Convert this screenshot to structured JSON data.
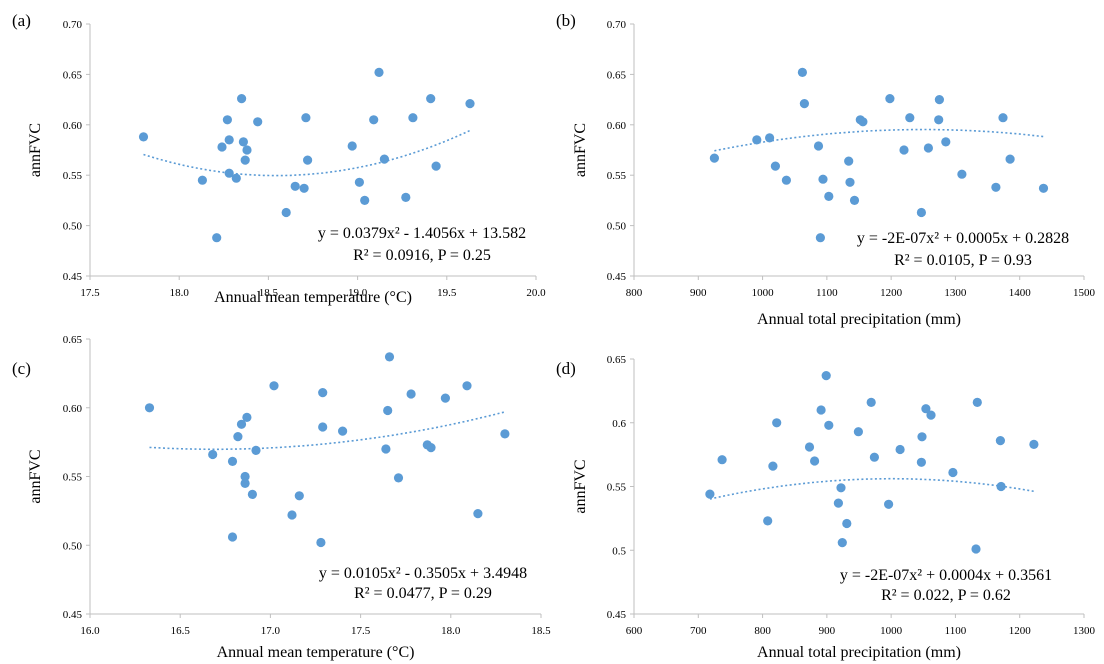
{
  "figure": {
    "colors": {
      "point": "#5b9bd5",
      "trend": "#5b9bd5",
      "axis": "#bfbfbf",
      "tick_text": "#595959"
    }
  },
  "chart_data": [
    {
      "panel": "(a)",
      "type": "scatter",
      "xlabel": "Annual mean temperature (°C)",
      "ylabel": "annFVC",
      "xlim": [
        17.5,
        20.0
      ],
      "ylim": [
        0.45,
        0.7
      ],
      "x_ticks": [
        "17.5",
        "18.0",
        "18.5",
        "19.0",
        "19.5",
        "20.0"
      ],
      "y_ticks": [
        "0.45",
        "0.50",
        "0.55",
        "0.60",
        "0.65",
        "0.70"
      ],
      "trendline": {
        "type": "poly2",
        "a": 0.0379,
        "b": -1.4056,
        "c": 13.582,
        "x_range": [
          17.8,
          19.63
        ]
      },
      "equation": "y = 0.0379x² - 1.4056x + 13.582",
      "stats": "R² = 0.0916, P = 0.25",
      "points": [
        [
          17.8,
          0.588
        ],
        [
          18.13,
          0.545
        ],
        [
          18.21,
          0.488
        ],
        [
          18.24,
          0.578
        ],
        [
          18.27,
          0.605
        ],
        [
          18.28,
          0.552
        ],
        [
          18.28,
          0.585
        ],
        [
          18.32,
          0.547
        ],
        [
          18.35,
          0.626
        ],
        [
          18.36,
          0.583
        ],
        [
          18.37,
          0.565
        ],
        [
          18.38,
          0.575
        ],
        [
          18.44,
          0.603
        ],
        [
          18.6,
          0.513
        ],
        [
          18.65,
          0.539
        ],
        [
          18.7,
          0.537
        ],
        [
          18.71,
          0.607
        ],
        [
          18.72,
          0.565
        ],
        [
          18.97,
          0.579
        ],
        [
          19.01,
          0.543
        ],
        [
          19.04,
          0.525
        ],
        [
          19.09,
          0.605
        ],
        [
          19.12,
          0.652
        ],
        [
          19.15,
          0.566
        ],
        [
          19.27,
          0.528
        ],
        [
          19.31,
          0.607
        ],
        [
          19.41,
          0.626
        ],
        [
          19.44,
          0.559
        ],
        [
          19.63,
          0.621
        ]
      ]
    },
    {
      "panel": "(b)",
      "type": "scatter",
      "xlabel": "Annual total precipitation (mm)",
      "ylabel": "annFVC",
      "xlim": [
        800,
        1500
      ],
      "ylim": [
        0.45,
        0.7
      ],
      "x_ticks": [
        "800",
        "900",
        "1000",
        "1100",
        "1200",
        "1300",
        "1400",
        "1500"
      ],
      "y_ticks": [
        "0.45",
        "0.50",
        "0.55",
        "0.60",
        "0.65",
        "0.70"
      ],
      "trendline": {
        "type": "poly2",
        "a": -2e-07,
        "b": 0.0005,
        "c": 0.2828,
        "x_range": [
          925,
          1437
        ]
      },
      "equation": "y = -2E-07x² + 0.0005x + 0.2828",
      "stats": "R² = 0.0105, P = 0.93",
      "points": [
        [
          925,
          0.567
        ],
        [
          991,
          0.585
        ],
        [
          1011,
          0.587
        ],
        [
          1020,
          0.559
        ],
        [
          1037,
          0.545
        ],
        [
          1062,
          0.652
        ],
        [
          1065,
          0.621
        ],
        [
          1087,
          0.579
        ],
        [
          1090,
          0.488
        ],
        [
          1094,
          0.546
        ],
        [
          1103,
          0.529
        ],
        [
          1134,
          0.564
        ],
        [
          1136,
          0.543
        ],
        [
          1143,
          0.525
        ],
        [
          1152,
          0.605
        ],
        [
          1156,
          0.603
        ],
        [
          1198,
          0.626
        ],
        [
          1220,
          0.575
        ],
        [
          1229,
          0.607
        ],
        [
          1247,
          0.513
        ],
        [
          1258,
          0.577
        ],
        [
          1274,
          0.605
        ],
        [
          1275,
          0.625
        ],
        [
          1285,
          0.583
        ],
        [
          1310,
          0.551
        ],
        [
          1363,
          0.538
        ],
        [
          1374,
          0.607
        ],
        [
          1385,
          0.566
        ],
        [
          1437,
          0.537
        ]
      ]
    },
    {
      "panel": "(c)",
      "type": "scatter",
      "xlabel": "Annual mean temperature (°C)",
      "ylabel": "annFVC",
      "xlim": [
        16.0,
        18.5
      ],
      "ylim": [
        0.45,
        0.65
      ],
      "x_ticks": [
        "16.0",
        "16.5",
        "17.0",
        "17.5",
        "18.0",
        "18.5"
      ],
      "y_ticks": [
        "0.45",
        "0.50",
        "0.55",
        "0.60",
        "0.65"
      ],
      "trendline": {
        "type": "poly2",
        "a": 0.0105,
        "b": -0.3505,
        "c": 3.4948,
        "x_range": [
          16.33,
          18.3
        ]
      },
      "equation": "y = 0.0105x² - 0.3505x + 3.4948",
      "stats": "R² = 0.0477, P = 0.29",
      "points": [
        [
          16.33,
          0.6
        ],
        [
          16.68,
          0.566
        ],
        [
          16.79,
          0.561
        ],
        [
          16.79,
          0.506
        ],
        [
          16.82,
          0.579
        ],
        [
          16.84,
          0.588
        ],
        [
          16.86,
          0.55
        ],
        [
          16.86,
          0.545
        ],
        [
          16.87,
          0.593
        ],
        [
          16.9,
          0.537
        ],
        [
          16.92,
          0.569
        ],
        [
          17.02,
          0.616
        ],
        [
          17.12,
          0.522
        ],
        [
          17.16,
          0.536
        ],
        [
          17.28,
          0.502
        ],
        [
          17.29,
          0.611
        ],
        [
          17.29,
          0.586
        ],
        [
          17.4,
          0.583
        ],
        [
          17.64,
          0.57
        ],
        [
          17.65,
          0.598
        ],
        [
          17.66,
          0.637
        ],
        [
          17.71,
          0.549
        ],
        [
          17.78,
          0.61
        ],
        [
          17.87,
          0.573
        ],
        [
          17.89,
          0.571
        ],
        [
          17.97,
          0.607
        ],
        [
          18.09,
          0.616
        ],
        [
          18.15,
          0.523
        ],
        [
          18.3,
          0.581
        ]
      ]
    },
    {
      "panel": "(d)",
      "type": "scatter",
      "xlabel": "Annual total precipitation (mm)",
      "ylabel": "annFVC",
      "xlim": [
        600,
        1300
      ],
      "ylim": [
        0.45,
        0.65
      ],
      "x_ticks": [
        "600",
        "700",
        "800",
        "900",
        "1000",
        "1100",
        "1200",
        "1300"
      ],
      "y_ticks": [
        "0.45",
        "0.5",
        "0.55",
        "0.6",
        "0.65"
      ],
      "trendline": {
        "type": "poly2",
        "a": -2e-07,
        "b": 0.0004,
        "c": 0.3561,
        "x_range": [
          718,
          1222
        ]
      },
      "equation": "y = -2E-07x² + 0.0004x + 0.3561",
      "stats": "R² = 0.022, P = 0.62",
      "points": [
        [
          718,
          0.544
        ],
        [
          737,
          0.571
        ],
        [
          808,
          0.523
        ],
        [
          816,
          0.566
        ],
        [
          822,
          0.6
        ],
        [
          873,
          0.581
        ],
        [
          881,
          0.57
        ],
        [
          891,
          0.61
        ],
        [
          899,
          0.637
        ],
        [
          903,
          0.598
        ],
        [
          918,
          0.537
        ],
        [
          922,
          0.549
        ],
        [
          924,
          0.506
        ],
        [
          931,
          0.521
        ],
        [
          949,
          0.593
        ],
        [
          969,
          0.616
        ],
        [
          974,
          0.573
        ],
        [
          996,
          0.536
        ],
        [
          1014,
          0.579
        ],
        [
          1047,
          0.569
        ],
        [
          1048,
          0.589
        ],
        [
          1054,
          0.611
        ],
        [
          1062,
          0.606
        ],
        [
          1096,
          0.561
        ],
        [
          1132,
          0.501
        ],
        [
          1134,
          0.616
        ],
        [
          1170,
          0.586
        ],
        [
          1171,
          0.55
        ],
        [
          1222,
          0.583
        ]
      ]
    }
  ]
}
